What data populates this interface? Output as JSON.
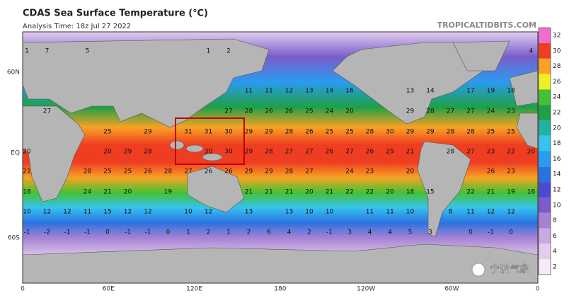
{
  "header": {
    "title": "CDAS Sea Surface Temperature (℃)",
    "analysis_time": "Analysis Time: 18z Jul 27 2022",
    "source": "TROPICALTIDBITS.COM"
  },
  "map": {
    "lat_labels": [
      "60N",
      "EQ",
      "60S"
    ],
    "lon_labels": [
      "0",
      "60E",
      "120E",
      "180",
      "120W",
      "60W",
      "0"
    ],
    "grid_values": [
      [
        1,
        7,
        null,
        5,
        null,
        null,
        null,
        null,
        null,
        1,
        2,
        null,
        null,
        null,
        null,
        null,
        null,
        null,
        null,
        null,
        null,
        null,
        null,
        null,
        null,
        4
      ],
      [
        null,
        null,
        null,
        null,
        null,
        null,
        null,
        null,
        null,
        null,
        null,
        11,
        11,
        12,
        13,
        14,
        16,
        null,
        null,
        13,
        14,
        null,
        17,
        19,
        18,
        null
      ],
      [
        null,
        27,
        null,
        null,
        null,
        null,
        null,
        null,
        null,
        null,
        27,
        28,
        26,
        26,
        25,
        24,
        20,
        null,
        null,
        29,
        28,
        27,
        27,
        24,
        23,
        null
      ],
      [
        null,
        null,
        null,
        null,
        25,
        null,
        29,
        null,
        31,
        31,
        30,
        29,
        29,
        28,
        26,
        25,
        25,
        28,
        30,
        29,
        29,
        28,
        28,
        25,
        25,
        null
      ],
      [
        20,
        null,
        null,
        null,
        20,
        29,
        28,
        null,
        null,
        30,
        30,
        29,
        28,
        27,
        27,
        26,
        27,
        26,
        25,
        21,
        null,
        28,
        27,
        23,
        22,
        20
      ],
      [
        21,
        null,
        null,
        28,
        25,
        25,
        26,
        28,
        27,
        26,
        26,
        29,
        29,
        28,
        27,
        null,
        24,
        23,
        null,
        20,
        null,
        null,
        null,
        26,
        23,
        null
      ],
      [
        18,
        null,
        null,
        24,
        21,
        20,
        null,
        19,
        null,
        null,
        null,
        21,
        21,
        21,
        20,
        21,
        22,
        22,
        20,
        18,
        15,
        null,
        22,
        21,
        19,
        16
      ],
      [
        10,
        12,
        12,
        11,
        15,
        12,
        12,
        null,
        10,
        12,
        null,
        13,
        null,
        13,
        10,
        10,
        null,
        11,
        11,
        10,
        null,
        8,
        11,
        12,
        12,
        null
      ],
      [
        -1,
        -2,
        -1,
        -1,
        0,
        -1,
        -1,
        0,
        1,
        2,
        1,
        2,
        6,
        4,
        2,
        -1,
        3,
        4,
        4,
        5,
        3,
        null,
        0,
        -1,
        0,
        null
      ]
    ]
  },
  "colorbar": {
    "ticks": [
      2,
      4,
      6,
      8,
      10,
      12,
      14,
      16,
      18,
      20,
      22,
      24,
      26,
      28,
      30,
      32
    ],
    "colors": [
      "#f2ecf6",
      "#e2cdee",
      "#caa9e2",
      "#a582d3",
      "#7a5ccb",
      "#4a4bd0",
      "#2a72e0",
      "#2a9bf0",
      "#35c3f0",
      "#1eb3a3",
      "#1ea046",
      "#44c232",
      "#f2ee24",
      "#f8a324",
      "#ef3d22",
      "#f06ed2"
    ]
  },
  "watermark": "宁波气象"
}
